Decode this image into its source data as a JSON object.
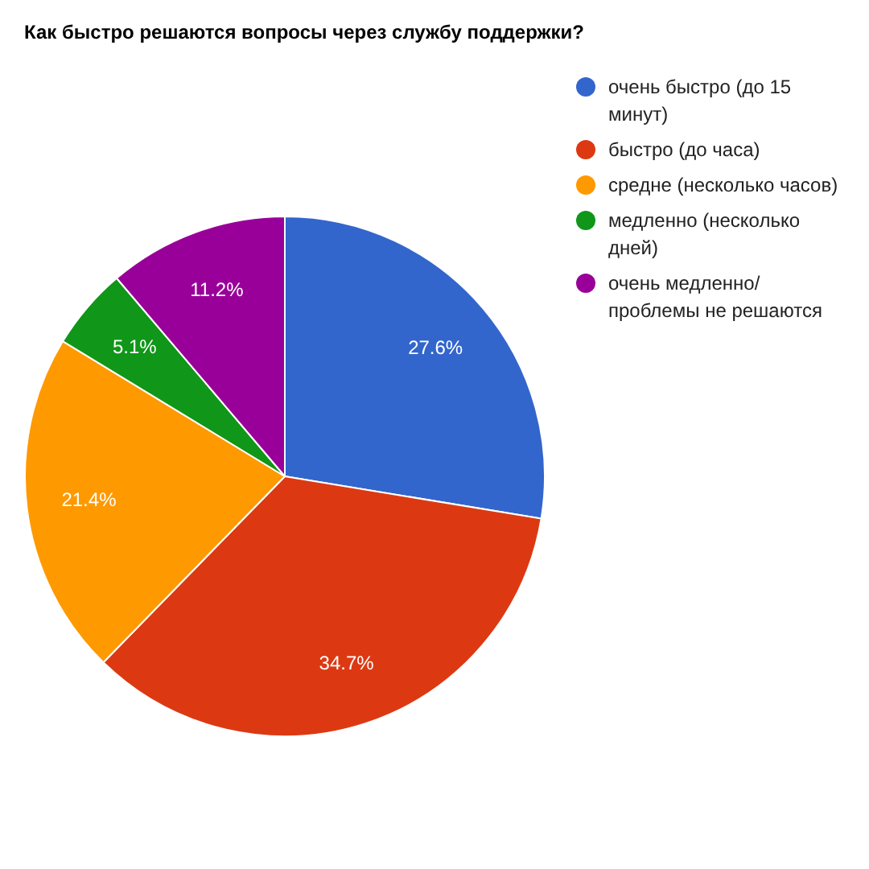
{
  "chart_data": {
    "type": "pie",
    "title": "Как быстро решаются вопросы через службу поддержки?",
    "categories": [
      "очень быстро (до 15 минут)",
      "быстро (до часа)",
      "средне (несколько часов)",
      "медленно (несколько дней)",
      "очень медленно/ проблемы не решаются"
    ],
    "values": [
      27.6,
      34.7,
      21.4,
      5.1,
      11.2
    ],
    "value_labels": [
      "27.6%",
      "34.7%",
      "21.4%",
      "5.1%",
      "11.2%"
    ],
    "colors": [
      "#3366cc",
      "#dc3912",
      "#ff9900",
      "#109618",
      "#990099"
    ],
    "legend": "right"
  }
}
